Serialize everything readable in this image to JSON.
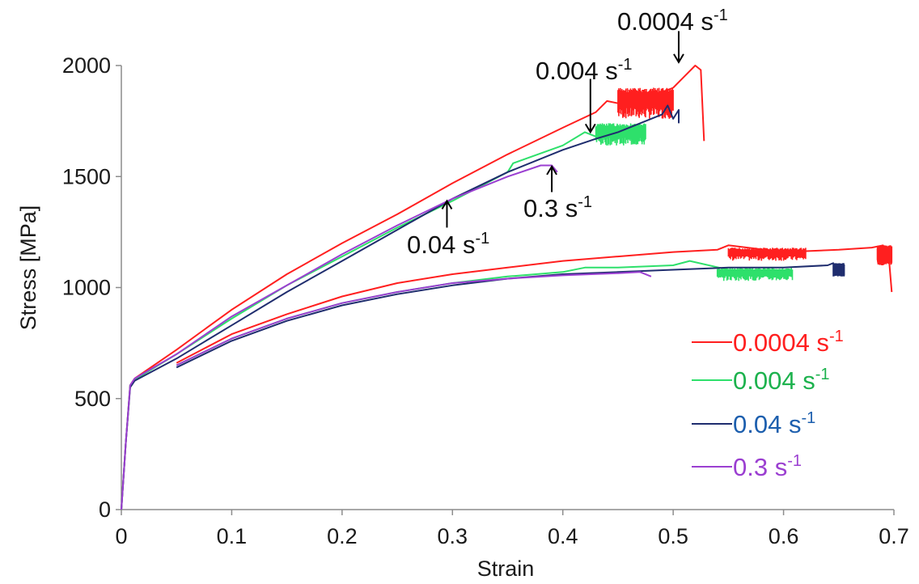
{
  "chart_data": {
    "type": "line",
    "xlabel": "Strain",
    "ylabel": "Stress [MPa]",
    "xlim": [
      0,
      0.7
    ],
    "ylim": [
      0,
      2000
    ],
    "x_ticks": [
      "0",
      "0.1",
      "0.2",
      "0.3",
      "0.4",
      "0.5",
      "0.6",
      "0.7"
    ],
    "y_ticks": [
      "0",
      "500",
      "1000",
      "1500",
      "2000"
    ],
    "grid": false,
    "legend_position": "right",
    "series": [
      {
        "name": "0.0004 s⁻¹",
        "color": "#ff1f1f",
        "curves": [
          [
            [
              0,
              0
            ],
            [
              0.004,
              300
            ],
            [
              0.008,
              560
            ],
            [
              0.012,
              590
            ],
            [
              0.05,
              720
            ],
            [
              0.1,
              900
            ],
            [
              0.15,
              1060
            ],
            [
              0.2,
              1200
            ],
            [
              0.25,
              1330
            ],
            [
              0.3,
              1470
            ],
            [
              0.35,
              1600
            ],
            [
              0.4,
              1720
            ],
            [
              0.43,
              1790
            ],
            [
              0.44,
              1840
            ],
            [
              0.46,
              1820
            ],
            [
              0.5,
              1900
            ],
            [
              0.51,
              1950
            ],
            [
              0.52,
              2000
            ],
            [
              0.525,
              1980
            ],
            [
              0.528,
              1660
            ]
          ],
          [
            [
              0.05,
              660
            ],
            [
              0.1,
              790
            ],
            [
              0.15,
              880
            ],
            [
              0.2,
              960
            ],
            [
              0.25,
              1020
            ],
            [
              0.3,
              1060
            ],
            [
              0.35,
              1090
            ],
            [
              0.4,
              1120
            ],
            [
              0.45,
              1140
            ],
            [
              0.5,
              1160
            ],
            [
              0.54,
              1170
            ],
            [
              0.55,
              1190
            ],
            [
              0.6,
              1160
            ],
            [
              0.65,
              1170
            ],
            [
              0.68,
              1180
            ],
            [
              0.69,
              1190
            ],
            [
              0.695,
              1160
            ],
            [
              0.698,
              980
            ]
          ]
        ],
        "noise_bands": [
          [
            0.45,
            0.5,
            1760,
            1900
          ],
          [
            0.55,
            0.62,
            1120,
            1180
          ],
          [
            0.685,
            0.698,
            1100,
            1190
          ]
        ]
      },
      {
        "name": "0.004 s⁻¹",
        "color": "#2ee06b",
        "curves": [
          [
            [
              0,
              0
            ],
            [
              0.004,
              300
            ],
            [
              0.008,
              560
            ],
            [
              0.012,
              585
            ],
            [
              0.05,
              700
            ],
            [
              0.1,
              860
            ],
            [
              0.15,
              1010
            ],
            [
              0.2,
              1140
            ],
            [
              0.25,
              1270
            ],
            [
              0.3,
              1390
            ],
            [
              0.35,
              1520
            ],
            [
              0.355,
              1560
            ],
            [
              0.4,
              1640
            ],
            [
              0.42,
              1700
            ],
            [
              0.43,
              1680
            ],
            [
              0.45,
              1700
            ],
            [
              0.475,
              1730
            ]
          ],
          [
            [
              0.05,
              650
            ],
            [
              0.1,
              770
            ],
            [
              0.15,
              860
            ],
            [
              0.2,
              930
            ],
            [
              0.25,
              980
            ],
            [
              0.3,
              1020
            ],
            [
              0.35,
              1050
            ],
            [
              0.4,
              1070
            ],
            [
              0.42,
              1090
            ],
            [
              0.45,
              1090
            ],
            [
              0.5,
              1100
            ],
            [
              0.515,
              1120
            ],
            [
              0.55,
              1080
            ],
            [
              0.608,
              1060
            ]
          ]
        ],
        "noise_bands": [
          [
            0.43,
            0.475,
            1640,
            1740
          ],
          [
            0.54,
            0.608,
            1030,
            1090
          ]
        ]
      },
      {
        "name": "0.04 s⁻¹",
        "color": "#1f2d6e",
        "curves": [
          [
            [
              0,
              0
            ],
            [
              0.004,
              300
            ],
            [
              0.008,
              550
            ],
            [
              0.012,
              580
            ],
            [
              0.05,
              680
            ],
            [
              0.1,
              830
            ],
            [
              0.15,
              980
            ],
            [
              0.2,
              1120
            ],
            [
              0.25,
              1260
            ],
            [
              0.3,
              1400
            ],
            [
              0.35,
              1520
            ],
            [
              0.4,
              1620
            ],
            [
              0.43,
              1670
            ],
            [
              0.45,
              1700
            ],
            [
              0.47,
              1740
            ],
            [
              0.49,
              1780
            ],
            [
              0.495,
              1820
            ],
            [
              0.5,
              1760
            ],
            [
              0.505,
              1800
            ],
            [
              0.505,
              1740
            ]
          ],
          [
            [
              0.05,
              640
            ],
            [
              0.1,
              760
            ],
            [
              0.15,
              850
            ],
            [
              0.2,
              920
            ],
            [
              0.25,
              970
            ],
            [
              0.3,
              1010
            ],
            [
              0.35,
              1040
            ],
            [
              0.4,
              1060
            ],
            [
              0.45,
              1070
            ],
            [
              0.5,
              1080
            ],
            [
              0.55,
              1090
            ],
            [
              0.6,
              1090
            ],
            [
              0.64,
              1100
            ],
            [
              0.645,
              1110
            ],
            [
              0.65,
              1080
            ],
            [
              0.655,
              1060
            ]
          ]
        ],
        "noise_bands": [
          [
            0.645,
            0.655,
            1050,
            1110
          ]
        ]
      },
      {
        "name": "0.3 s⁻¹",
        "color": "#9b3fd1",
        "curves": [
          [
            [
              0,
              0
            ],
            [
              0.004,
              300
            ],
            [
              0.008,
              560
            ],
            [
              0.012,
              590
            ],
            [
              0.05,
              700
            ],
            [
              0.1,
              870
            ],
            [
              0.15,
              1010
            ],
            [
              0.2,
              1150
            ],
            [
              0.25,
              1280
            ],
            [
              0.3,
              1400
            ],
            [
              0.35,
              1500
            ],
            [
              0.38,
              1550
            ],
            [
              0.39,
              1550
            ],
            [
              0.395,
              1520
            ]
          ],
          [
            [
              0.05,
              650
            ],
            [
              0.1,
              770
            ],
            [
              0.15,
              860
            ],
            [
              0.2,
              930
            ],
            [
              0.25,
              980
            ],
            [
              0.3,
              1020
            ],
            [
              0.35,
              1040
            ],
            [
              0.4,
              1055
            ],
            [
              0.45,
              1065
            ],
            [
              0.47,
              1070
            ],
            [
              0.48,
              1050
            ]
          ]
        ],
        "noise_bands": []
      }
    ],
    "annotations": [
      {
        "base": "0.0004 s",
        "sup": "-1",
        "arrow_from": [
          0.505,
          2155
        ],
        "arrow_to": [
          0.505,
          2015
        ]
      },
      {
        "base": "0.004 s",
        "sup": "-1",
        "arrow_from": [
          0.425,
          1940
        ],
        "arrow_to": [
          0.425,
          1700
        ]
      },
      {
        "base": "0.04 s",
        "sup": "-1",
        "arrow_from": [
          0.295,
          1270
        ],
        "arrow_to": [
          0.295,
          1390
        ]
      },
      {
        "base": "0.3 s",
        "sup": "-1",
        "arrow_from": [
          0.39,
          1430
        ],
        "arrow_to": [
          0.39,
          1545
        ]
      }
    ],
    "legend": [
      {
        "base": "0.0004 s",
        "sup": "-1",
        "color": "#ff1f1f",
        "text_color": "#ff1f1f"
      },
      {
        "base": "0.004 s",
        "sup": "-1",
        "color": "#2ee06b",
        "text_color": "#1db24e"
      },
      {
        "base": "0.04 s",
        "sup": "-1",
        "color": "#1f2d6e",
        "text_color": "#1d5fae"
      },
      {
        "base": "0.3 s",
        "sup": "-1",
        "color": "#9b3fd1",
        "text_color": "#9b3fd1"
      }
    ]
  }
}
